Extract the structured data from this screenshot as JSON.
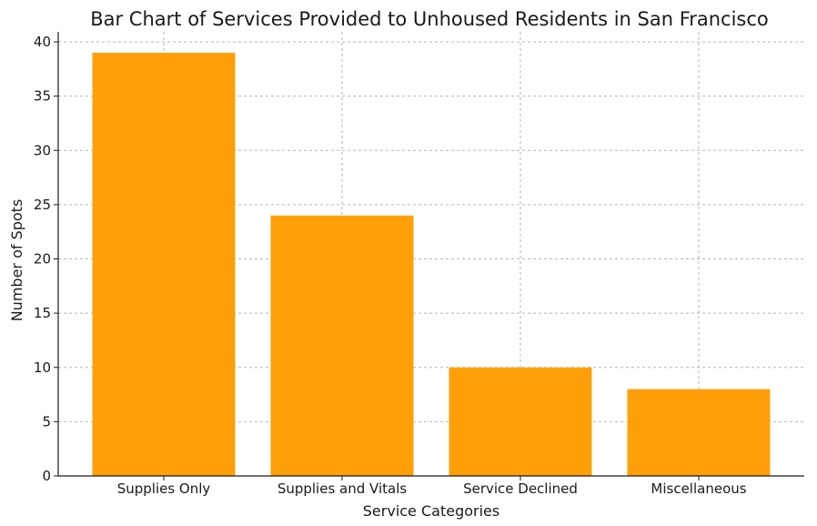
{
  "chart_data": {
    "type": "bar",
    "title": "Bar Chart of Services Provided to Unhoused Residents in San Francisco",
    "xlabel": "Service Categories",
    "ylabel": "Number of Spots",
    "categories": [
      "Supplies Only",
      "Supplies and Vitals",
      "Service Declined",
      "Miscellaneous"
    ],
    "values": [
      39,
      24,
      10,
      8
    ],
    "ylim": [
      0,
      40
    ],
    "yticks": [
      0,
      5,
      10,
      15,
      20,
      25,
      30,
      35,
      40
    ],
    "bar_color": "#ffa00a",
    "grid": true
  }
}
